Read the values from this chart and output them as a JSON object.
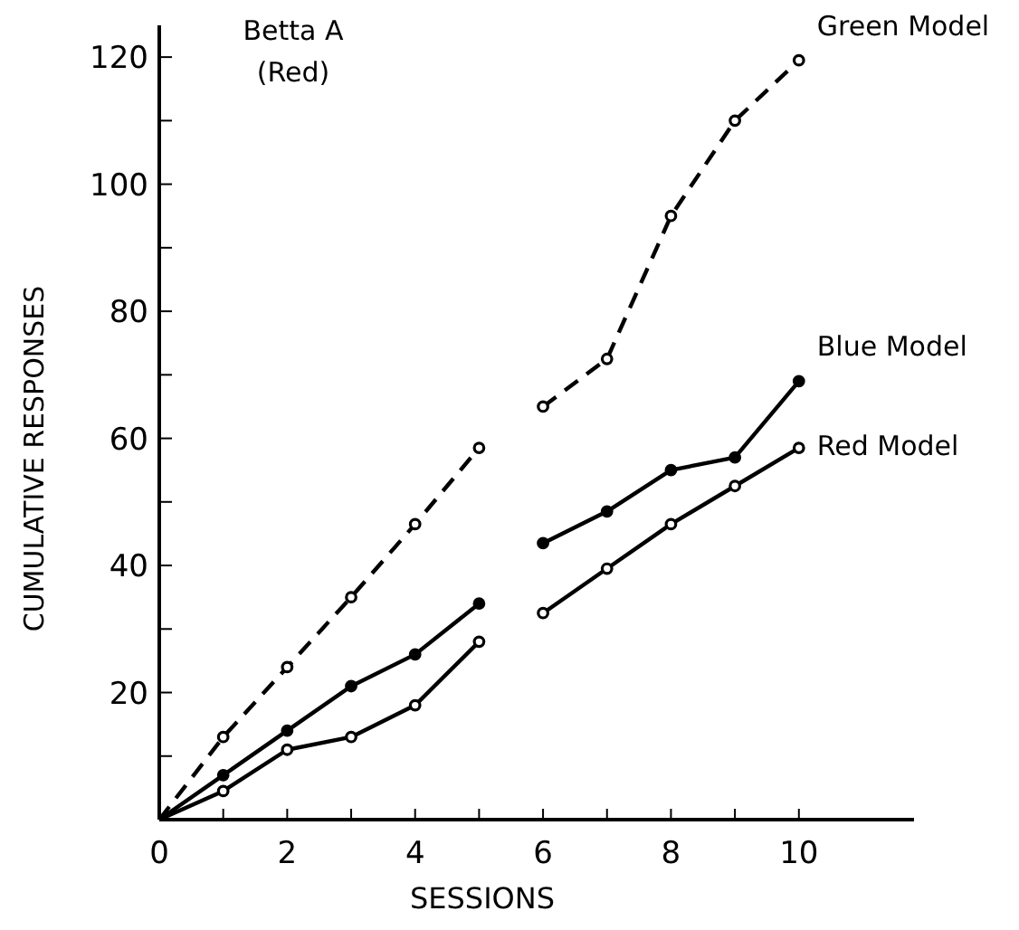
{
  "chart_data": {
    "type": "line",
    "xlabel": "SESSIONS",
    "ylabel": "CUMULATIVE RESPONSES",
    "annotations": [
      "Betta A",
      "(Red)"
    ],
    "x": [
      0,
      1,
      2,
      3,
      4,
      5,
      5.5,
      6,
      7,
      8,
      9,
      10
    ],
    "series": [
      {
        "name": "Green Model",
        "color": "#000000",
        "line_style": "dashed",
        "values": [
          0,
          13,
          24,
          35,
          46.5,
          58.5,
          null,
          65,
          72.5,
          95,
          110,
          119.5
        ]
      },
      {
        "name": "Blue Model",
        "color": "#000000",
        "line_style": "solid",
        "values": [
          0,
          7,
          14,
          21,
          26,
          34,
          null,
          43.5,
          48.5,
          55,
          57,
          69
        ]
      },
      {
        "name": "Red Model",
        "color": "#000000",
        "line_style": "solid",
        "values": [
          0,
          4.5,
          11,
          13,
          18,
          28,
          null,
          32.5,
          39.5,
          46.5,
          52.5,
          58.5
        ]
      }
    ],
    "marker": "circle",
    "xlim": [
      0,
      11.8
    ],
    "ylim": [
      0,
      125
    ],
    "xticks": [
      0,
      {
        "value": 1,
        "label": null
      },
      2,
      {
        "value": 3,
        "label": null
      },
      4,
      {
        "value": 5,
        "label": null
      },
      6,
      {
        "value": 7,
        "label": null
      },
      8,
      {
        "value": 9,
        "label": null
      },
      10
    ],
    "yticks": [
      {
        "value": 10,
        "label": null
      },
      20,
      {
        "value": 30,
        "label": null
      },
      40,
      {
        "value": 50,
        "label": null
      },
      60,
      {
        "value": 70,
        "label": null
      },
      80,
      {
        "value": 90,
        "label": null
      },
      100,
      {
        "value": 110,
        "label": null
      },
      120
    ],
    "grid": false
  }
}
